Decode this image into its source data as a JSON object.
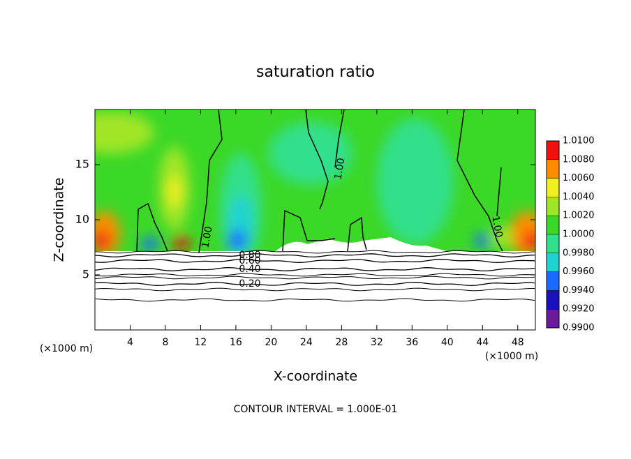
{
  "chart_data": {
    "type": "contour",
    "title": "saturation ratio",
    "x_label": "X-coordinate",
    "y_label": "Z-coordinate",
    "x_unit": "(×1000 m)",
    "y_unit": "(×1000 m)",
    "footer": "CONTOUR INTERVAL = 1.000E-01",
    "xlim": [
      0,
      50
    ],
    "xticks": [
      4,
      8,
      12,
      16,
      20,
      24,
      28,
      32,
      36,
      40,
      44,
      48
    ],
    "ylim": [
      0,
      20
    ],
    "yticks": [
      5,
      10,
      15
    ],
    "contour_levels": [
      {
        "value": 1,
        "label": "1.00"
      },
      {
        "value": 0.8,
        "label": "0.80"
      },
      {
        "value": 0.6,
        "label": "0.60"
      },
      {
        "value": 0.4,
        "label": "0.40"
      },
      {
        "value": 0.2,
        "label": "0.20"
      }
    ],
    "colorbar": {
      "lim": [
        0.99,
        1.01
      ],
      "ticks": [
        {
          "value": 0.99,
          "label": "0.9900"
        },
        {
          "value": 0.992,
          "label": "0.9920"
        },
        {
          "value": 0.994,
          "label": "0.9940"
        },
        {
          "value": 0.996,
          "label": "0.9960"
        },
        {
          "value": 0.998,
          "label": "0.9980"
        },
        {
          "value": 1.0,
          "label": "1.0000"
        },
        {
          "value": 1.002,
          "label": "1.0020"
        },
        {
          "value": 1.004,
          "label": "1.0040"
        },
        {
          "value": 1.006,
          "label": "1.0060"
        },
        {
          "value": 1.008,
          "label": "1.0080"
        },
        {
          "value": 1.01,
          "label": "1.0100"
        }
      ],
      "colors": [
        "#6a1a9a",
        "#1a10c0",
        "#1a6aff",
        "#20d2d2",
        "#30e08c",
        "#3cd828",
        "#a0e628",
        "#f0f020",
        "#ff8c00",
        "#f01010"
      ]
    }
  }
}
